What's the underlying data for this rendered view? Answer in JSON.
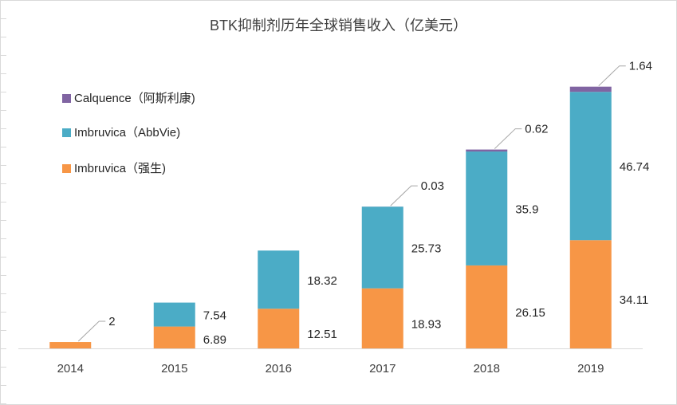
{
  "chart_data": {
    "type": "bar",
    "stacked": true,
    "title": "BTK抑制剂历年全球销售收入（亿美元）",
    "categories": [
      "2014",
      "2015",
      "2016",
      "2017",
      "2018",
      "2019"
    ],
    "series": [
      {
        "name": "Imbruvica（强生)",
        "color": "#F79646",
        "values": [
          2,
          6.89,
          12.51,
          18.93,
          26.15,
          34.11
        ],
        "labels": [
          "2",
          "6.89",
          "12.51",
          "18.93",
          "26.15",
          "34.11"
        ]
      },
      {
        "name": "Imbruvica（AbbVie)",
        "color": "#4BACC6",
        "values": [
          0,
          7.54,
          18.32,
          25.73,
          35.9,
          46.74
        ],
        "labels": [
          "",
          "7.54",
          "18.32",
          "25.73",
          "35.9",
          "46.74"
        ]
      },
      {
        "name": "Calquence（阿斯利康)",
        "color": "#8064A2",
        "values": [
          0,
          0,
          0,
          0.03,
          0.62,
          1.64
        ],
        "labels": [
          "",
          "",
          "",
          "0.03",
          "0.62",
          "1.64"
        ]
      }
    ],
    "ylim": [
      0,
      86
    ],
    "grid": false,
    "legend_position": "left",
    "xlabel": "",
    "ylabel": ""
  }
}
